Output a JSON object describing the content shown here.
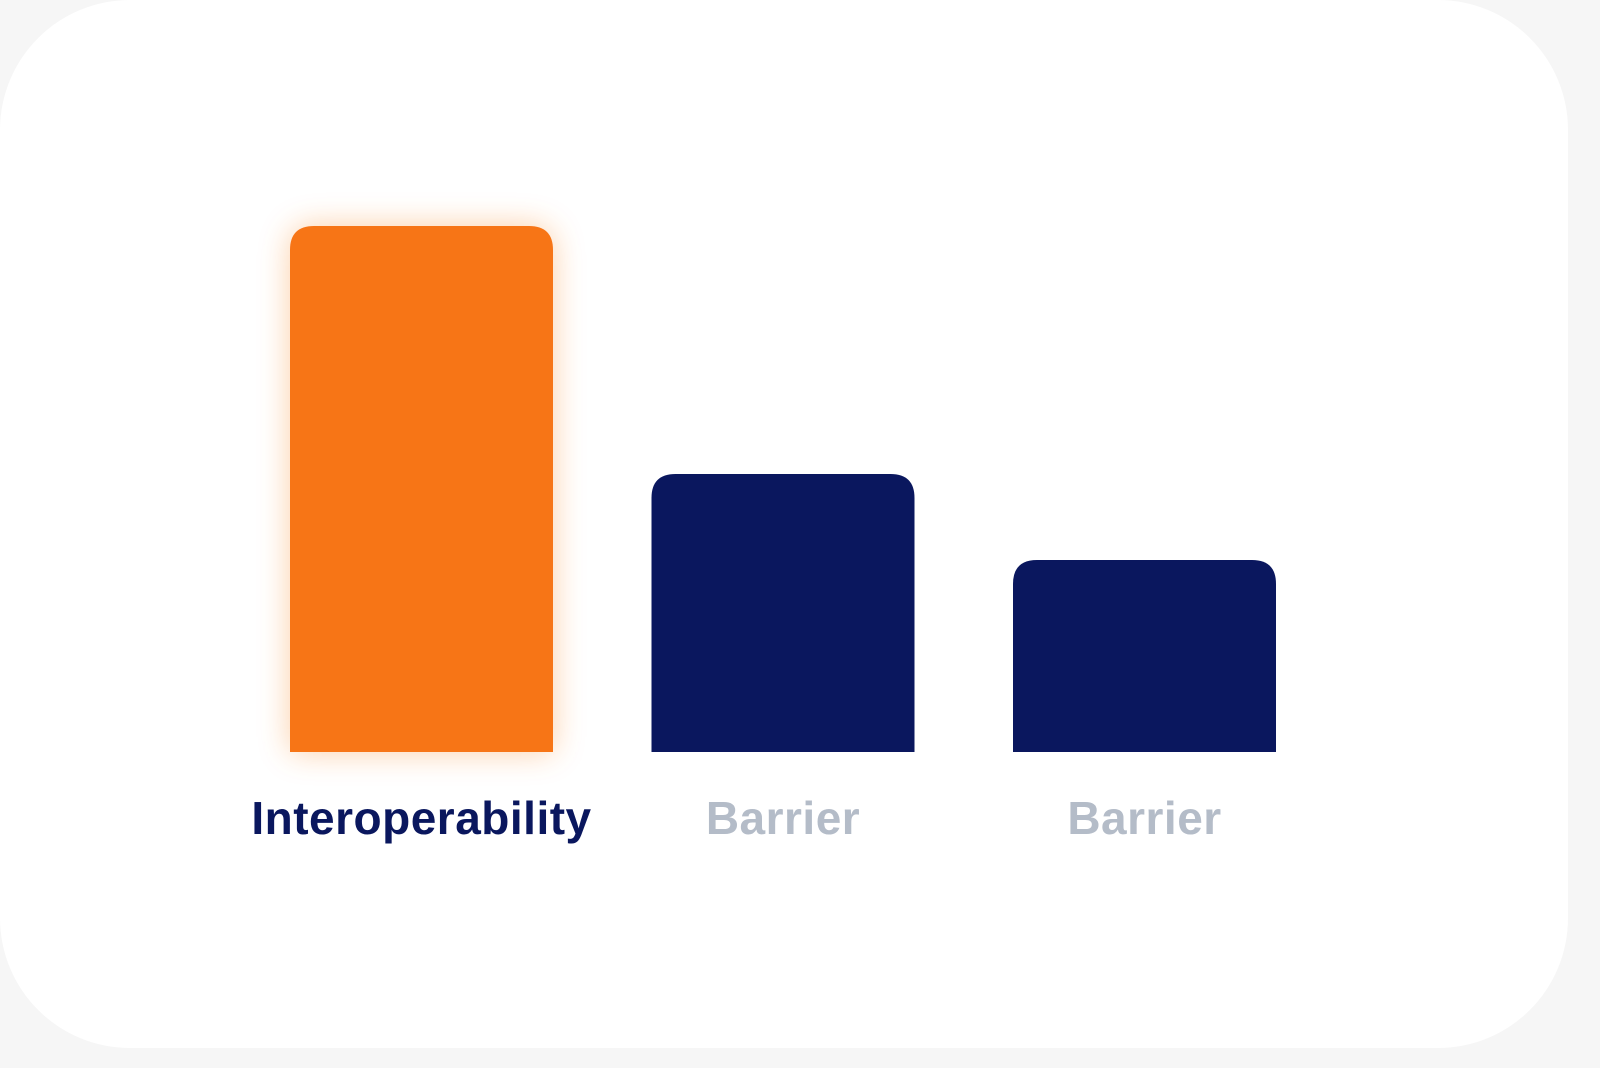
{
  "chart_data": {
    "type": "bar",
    "categories": [
      "Interoperability",
      "Barrier",
      "Barrier"
    ],
    "values": [
      526,
      278,
      192
    ],
    "colors": [
      "#f77419",
      "#0a175e",
      "#0a175e"
    ],
    "label_colors": [
      "#0a175e",
      "#b4bcc8",
      "#b4bcc8"
    ]
  }
}
